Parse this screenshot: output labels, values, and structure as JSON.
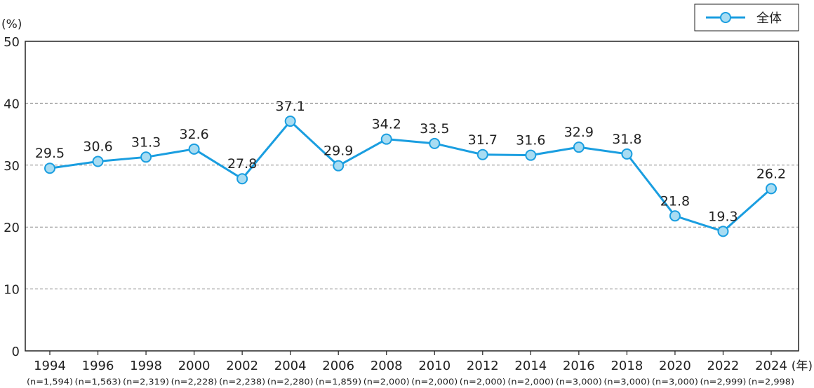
{
  "chart_data": {
    "type": "line",
    "ylabel": "(%)",
    "xlabel": "(年)",
    "ylim": [
      0,
      50
    ],
    "yticks": [
      0,
      10,
      20,
      30,
      40,
      50
    ],
    "grid": true,
    "legend_position": "top-right",
    "categories": [
      "1994",
      "1996",
      "1998",
      "2000",
      "2002",
      "2004",
      "2006",
      "2008",
      "2010",
      "2012",
      "2014",
      "2016",
      "2018",
      "2020",
      "2022",
      "2024"
    ],
    "sample_sizes": [
      "(n=1,594)",
      "(n=1,563)",
      "(n=2,319)",
      "(n=2,228)",
      "(n=2,238)",
      "(n=2,280)",
      "(n=1,859)",
      "(n=2,000)",
      "(n=2,000)",
      "(n=2,000)",
      "(n=2,000)",
      "(n=3,000)",
      "(n=3,000)",
      "(n=3,000)",
      "(n=2,999)",
      "(n=2,998)"
    ],
    "series": [
      {
        "name": "全体",
        "color": "#1a9ee0",
        "marker_fill": "#a8dcf2",
        "values": [
          29.5,
          30.6,
          31.3,
          32.6,
          27.8,
          37.1,
          29.9,
          34.2,
          33.5,
          31.7,
          31.6,
          32.9,
          31.8,
          21.8,
          19.3,
          26.2
        ]
      }
    ]
  }
}
